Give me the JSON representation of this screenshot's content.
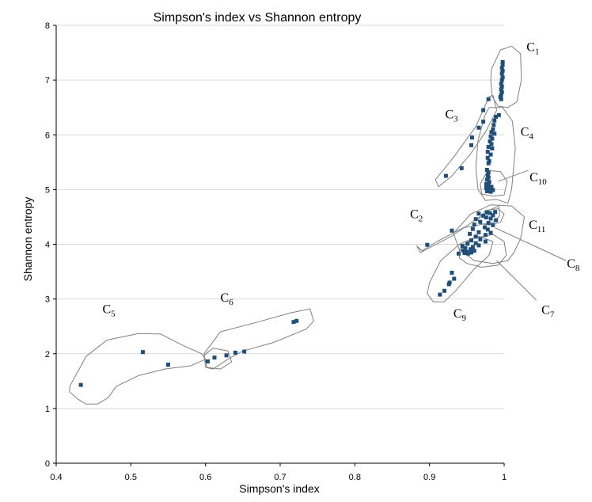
{
  "chart_data": {
    "type": "scatter",
    "title": "Simpson's index vs Shannon entropy",
    "xlabel": "Simpson's index",
    "ylabel": "Shannon entropy",
    "xlim": [
      0.4,
      1
    ],
    "ylim": [
      0,
      8
    ],
    "xticks": [
      "0.4",
      "0.5",
      "0.6",
      "0.7",
      "0.8",
      "0.9",
      "1"
    ],
    "yticks": [
      "0",
      "1",
      "2",
      "3",
      "4",
      "5",
      "6",
      "7",
      "8"
    ],
    "grid": "horizontal",
    "marker_color": "#1f4e79",
    "cluster_outline_color": "#808080",
    "gridline_color": "#d9d9d9",
    "clusters": [
      {
        "label": "C",
        "sub": "1"
      },
      {
        "label": "C",
        "sub": "2"
      },
      {
        "label": "C",
        "sub": "3"
      },
      {
        "label": "C",
        "sub": "4"
      },
      {
        "label": "C",
        "sub": "5"
      },
      {
        "label": "C",
        "sub": "6"
      },
      {
        "label": "C",
        "sub": "7"
      },
      {
        "label": "C",
        "sub": "8"
      },
      {
        "label": "C",
        "sub": "9"
      },
      {
        "label": "C",
        "sub": "10"
      },
      {
        "label": "C",
        "sub": "11"
      }
    ],
    "points": [
      [
        0.433,
        1.43
      ],
      [
        0.516,
        2.03
      ],
      [
        0.55,
        1.8
      ],
      [
        0.603,
        1.86
      ],
      [
        0.612,
        1.93
      ],
      [
        0.628,
        1.97
      ],
      [
        0.64,
        2.02
      ],
      [
        0.652,
        2.04
      ],
      [
        0.718,
        2.58
      ],
      [
        0.722,
        2.6
      ],
      [
        0.998,
        7.33
      ],
      [
        0.998,
        7.28
      ],
      [
        0.997,
        7.22
      ],
      [
        0.998,
        7.17
      ],
      [
        0.997,
        7.12
      ],
      [
        0.998,
        7.05
      ],
      [
        0.997,
        7.0
      ],
      [
        0.996,
        6.93
      ],
      [
        0.997,
        6.88
      ],
      [
        0.996,
        6.83
      ],
      [
        0.997,
        6.78
      ],
      [
        0.996,
        6.73
      ],
      [
        0.995,
        6.69
      ],
      [
        0.996,
        6.65
      ],
      [
        0.979,
        6.65
      ],
      [
        0.972,
        6.45
      ],
      [
        0.993,
        6.36
      ],
      [
        0.989,
        6.33
      ],
      [
        0.987,
        6.26
      ],
      [
        0.972,
        6.24
      ],
      [
        0.966,
        6.13
      ],
      [
        0.986,
        6.18
      ],
      [
        0.985,
        6.1
      ],
      [
        0.983,
        6.05
      ],
      [
        0.987,
        6.02
      ],
      [
        0.982,
        5.97
      ],
      [
        0.957,
        5.95
      ],
      [
        0.984,
        5.93
      ],
      [
        0.981,
        5.88
      ],
      [
        0.983,
        5.83
      ],
      [
        0.956,
        5.81
      ],
      [
        0.979,
        5.78
      ],
      [
        0.984,
        5.75
      ],
      [
        0.978,
        5.69
      ],
      [
        0.982,
        5.64
      ],
      [
        0.978,
        5.58
      ],
      [
        0.98,
        5.52
      ],
      [
        0.979,
        5.48
      ],
      [
        0.943,
        5.39
      ],
      [
        0.977,
        5.36
      ],
      [
        0.979,
        5.31
      ],
      [
        0.978,
        5.26
      ],
      [
        0.922,
        5.25
      ],
      [
        0.979,
        5.22
      ],
      [
        0.977,
        5.18
      ],
      [
        0.98,
        5.14
      ],
      [
        0.976,
        5.1
      ],
      [
        0.979,
        5.07
      ],
      [
        0.983,
        5.05
      ],
      [
        0.976,
        5.03
      ],
      [
        0.98,
        5.0
      ],
      [
        0.985,
        4.99
      ],
      [
        0.977,
        4.97
      ],
      [
        0.982,
        4.96
      ],
      [
        0.977,
        4.58
      ],
      [
        0.981,
        4.57
      ],
      [
        0.988,
        4.59
      ],
      [
        0.966,
        4.56
      ],
      [
        0.972,
        4.52
      ],
      [
        0.985,
        4.53
      ],
      [
        0.976,
        4.49
      ],
      [
        0.962,
        4.46
      ],
      [
        0.982,
        4.47
      ],
      [
        0.989,
        4.44
      ],
      [
        0.968,
        4.41
      ],
      [
        0.979,
        4.39
      ],
      [
        0.96,
        4.36
      ],
      [
        0.985,
        4.35
      ],
      [
        0.974,
        4.31
      ],
      [
        0.958,
        4.28
      ],
      [
        0.93,
        4.25
      ],
      [
        0.978,
        4.27
      ],
      [
        0.966,
        4.22
      ],
      [
        0.982,
        4.21
      ],
      [
        0.954,
        4.19
      ],
      [
        0.975,
        4.17
      ],
      [
        0.962,
        4.14
      ],
      [
        0.968,
        4.09
      ],
      [
        0.956,
        4.07
      ],
      [
        0.975,
        4.05
      ],
      [
        0.962,
        4.02
      ],
      [
        0.951,
        4.01
      ],
      [
        0.897,
        3.99
      ],
      [
        0.966,
        3.98
      ],
      [
        0.944,
        3.97
      ],
      [
        0.958,
        3.95
      ],
      [
        0.948,
        3.93
      ],
      [
        0.955,
        3.91
      ],
      [
        0.945,
        3.89
      ],
      [
        0.96,
        3.88
      ],
      [
        0.95,
        3.86
      ],
      [
        0.956,
        3.85
      ],
      [
        0.947,
        3.84
      ],
      [
        0.939,
        3.83
      ],
      [
        0.952,
        3.83
      ],
      [
        0.93,
        3.48
      ],
      [
        0.933,
        3.37
      ],
      [
        0.927,
        3.3
      ],
      [
        0.926,
        3.27
      ],
      [
        0.92,
        3.15
      ],
      [
        0.914,
        3.08
      ]
    ],
    "annotations": [
      {
        "label": "C",
        "sub": "1",
        "x": 1.03,
        "y": 7.53
      },
      {
        "label": "C",
        "sub": "3",
        "x": 0.921,
        "y": 6.3
      },
      {
        "label": "C",
        "sub": "4",
        "x": 1.022,
        "y": 5.98
      },
      {
        "label": "C",
        "sub": "10",
        "x": 1.034,
        "y": 5.15
      },
      {
        "label": "C",
        "sub": "2",
        "x": 0.874,
        "y": 4.48
      },
      {
        "label": "C",
        "sub": "11",
        "x": 1.033,
        "y": 4.28
      },
      {
        "label": "C",
        "sub": "8",
        "x": 1.084,
        "y": 3.57
      },
      {
        "label": "C",
        "sub": "7",
        "x": 1.05,
        "y": 2.73
      },
      {
        "label": "C",
        "sub": "9",
        "x": 0.932,
        "y": 2.66
      },
      {
        "label": "C",
        "sub": "5",
        "x": 0.462,
        "y": 2.74
      },
      {
        "label": "C",
        "sub": "6",
        "x": 0.62,
        "y": 2.95
      }
    ],
    "leaders": [
      {
        "from": [
          0.988,
          4.3
        ],
        "to": [
          1.083,
          3.7
        ]
      },
      {
        "from": [
          0.99,
          3.7
        ],
        "to": [
          1.043,
          2.98
        ]
      },
      {
        "from": [
          0.992,
          5.15
        ],
        "to": [
          1.032,
          5.35
        ]
      }
    ],
    "outlines": [
      [
        [
          0.983,
          7.2
        ],
        [
          0.995,
          7.55
        ],
        [
          1.01,
          7.62
        ],
        [
          1.022,
          7.48
        ],
        [
          1.023,
          7.0
        ],
        [
          1.017,
          6.6
        ],
        [
          1.005,
          6.5
        ],
        [
          0.992,
          6.52
        ],
        [
          0.984,
          6.7
        ],
        [
          0.982,
          7.0
        ]
      ],
      [
        [
          0.908,
          5.18
        ],
        [
          0.93,
          5.55
        ],
        [
          0.962,
          6.15
        ],
        [
          0.98,
          6.7
        ],
        [
          0.985,
          6.72
        ],
        [
          0.99,
          6.45
        ],
        [
          0.975,
          6.05
        ],
        [
          0.955,
          5.65
        ],
        [
          0.93,
          5.25
        ],
        [
          0.912,
          5.05
        ]
      ],
      [
        [
          0.98,
          6.5
        ],
        [
          0.998,
          6.5
        ],
        [
          1.011,
          6.25
        ],
        [
          1.015,
          5.75
        ],
        [
          1.01,
          5.0
        ],
        [
          1.005,
          4.75
        ],
        [
          0.99,
          4.82
        ],
        [
          0.975,
          4.8
        ],
        [
          0.965,
          5.0
        ],
        [
          0.962,
          5.4
        ],
        [
          0.965,
          5.9
        ],
        [
          0.974,
          6.35
        ]
      ],
      [
        [
          0.968,
          5.1
        ],
        [
          0.978,
          5.35
        ],
        [
          0.995,
          5.33
        ],
        [
          1.004,
          5.15
        ],
        [
          1.0,
          4.9
        ],
        [
          0.985,
          4.88
        ],
        [
          0.97,
          4.92
        ]
      ],
      [
        [
          0.883,
          3.97
        ],
        [
          0.888,
          3.85
        ],
        [
          0.93,
          4.15
        ],
        [
          0.98,
          4.62
        ],
        [
          0.993,
          4.7
        ],
        [
          0.994,
          4.52
        ],
        [
          0.985,
          4.4
        ],
        [
          0.945,
          4.3
        ],
        [
          0.91,
          4.05
        ],
        [
          0.89,
          3.88
        ]
      ],
      [
        [
          0.932,
          4.2
        ],
        [
          0.955,
          4.55
        ],
        [
          0.982,
          4.72
        ],
        [
          1.01,
          4.7
        ],
        [
          1.027,
          4.5
        ],
        [
          1.022,
          4.1
        ],
        [
          1.013,
          3.85
        ],
        [
          1.005,
          3.7
        ],
        [
          0.985,
          3.65
        ],
        [
          0.96,
          3.7
        ],
        [
          0.94,
          3.9
        ]
      ],
      [
        [
          0.94,
          3.9
        ],
        [
          0.955,
          4.1
        ],
        [
          0.985,
          4.18
        ],
        [
          1.0,
          4.05
        ],
        [
          1.003,
          3.8
        ],
        [
          0.992,
          3.62
        ],
        [
          0.97,
          3.58
        ],
        [
          0.95,
          3.65
        ],
        [
          0.94,
          3.75
        ]
      ],
      [
        [
          0.9,
          3.3
        ],
        [
          0.915,
          3.7
        ],
        [
          0.94,
          4.0
        ],
        [
          0.965,
          4.15
        ],
        [
          0.985,
          4.05
        ],
        [
          0.98,
          3.8
        ],
        [
          0.96,
          3.55
        ],
        [
          0.935,
          3.15
        ],
        [
          0.92,
          2.95
        ],
        [
          0.905,
          2.95
        ],
        [
          0.897,
          3.1
        ]
      ],
      [
        [
          0.965,
          4.45
        ],
        [
          0.975,
          4.62
        ],
        [
          0.992,
          4.65
        ],
        [
          1.0,
          4.55
        ],
        [
          0.995,
          4.4
        ],
        [
          0.98,
          4.35
        ],
        [
          0.967,
          4.38
        ]
      ],
      [
        [
          0.418,
          1.4
        ],
        [
          0.44,
          1.95
        ],
        [
          0.468,
          2.25
        ],
        [
          0.51,
          2.37
        ],
        [
          0.54,
          2.36
        ],
        [
          0.57,
          2.15
        ],
        [
          0.595,
          2.0
        ],
        [
          0.6,
          1.9
        ],
        [
          0.58,
          1.78
        ],
        [
          0.545,
          1.72
        ],
        [
          0.51,
          1.6
        ],
        [
          0.48,
          1.4
        ],
        [
          0.47,
          1.2
        ],
        [
          0.455,
          1.08
        ],
        [
          0.44,
          1.08
        ],
        [
          0.428,
          1.18
        ],
        [
          0.418,
          1.3
        ]
      ],
      [
        [
          0.598,
          2.0
        ],
        [
          0.62,
          2.4
        ],
        [
          0.67,
          2.58
        ],
        [
          0.715,
          2.75
        ],
        [
          0.74,
          2.82
        ],
        [
          0.745,
          2.6
        ],
        [
          0.735,
          2.45
        ],
        [
          0.69,
          2.2
        ],
        [
          0.65,
          2.05
        ],
        [
          0.63,
          1.9
        ],
        [
          0.61,
          1.72
        ],
        [
          0.6,
          1.75
        ]
      ],
      [
        [
          0.598,
          1.97
        ],
        [
          0.61,
          2.1
        ],
        [
          0.63,
          2.05
        ],
        [
          0.635,
          1.85
        ],
        [
          0.62,
          1.72
        ],
        [
          0.602,
          1.75
        ]
      ]
    ]
  }
}
